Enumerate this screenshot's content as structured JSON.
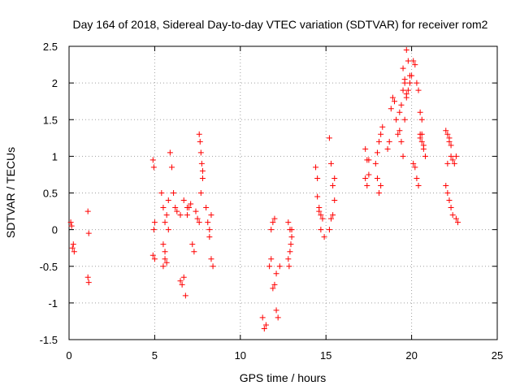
{
  "chart_data": {
    "type": "scatter",
    "title": "Day 164 of 2018, Sidereal Day-to-day VTEC variation (SDTVAR) for receiver rom2",
    "xlabel": "GPS time / hours",
    "ylabel": "SDTVAR / TECUs",
    "xlim": [
      0,
      25
    ],
    "ylim": [
      -1.5,
      2.5
    ],
    "x_ticks": [
      0,
      5,
      10,
      15,
      20,
      25
    ],
    "x_tick_labels": [
      "0",
      "5",
      "10",
      "15",
      "20",
      "25"
    ],
    "y_ticks": [
      -1.5,
      -1,
      -0.5,
      0,
      0.5,
      1,
      1.5,
      2,
      2.5
    ],
    "y_tick_labels": [
      "-1.5",
      "-1",
      "-0.5",
      "0",
      "0.5",
      "1",
      "1.5",
      "2",
      "2.5"
    ],
    "grid": true,
    "marker": "plus",
    "color": "#ff0000",
    "series": [
      {
        "name": "SDTVAR",
        "x": [
          0.1,
          0.2,
          0.3,
          0.15,
          0.25,
          1.1,
          1.15,
          1.1,
          1.15,
          4.9,
          4.95,
          5.0,
          4.9,
          5.0,
          4.95,
          5.4,
          5.5,
          5.6,
          5.7,
          5.8,
          5.5,
          5.6,
          5.7,
          5.9,
          6.0,
          5.8,
          5.5,
          5.6,
          6.1,
          6.2,
          6.3,
          6.5,
          6.6,
          6.7,
          6.8,
          6.9,
          7.0,
          7.1,
          7.2,
          7.3,
          7.4,
          7.5,
          7.6,
          7.7,
          7.8,
          7.6,
          7.65,
          7.7,
          7.75,
          7.8,
          8.0,
          8.1,
          8.2,
          8.3,
          8.4,
          8.2,
          8.3,
          6.5,
          6.7,
          6.9,
          11.3,
          11.4,
          11.5,
          11.7,
          11.8,
          11.9,
          12.0,
          12.1,
          12.2,
          11.8,
          11.9,
          12.0,
          12.1,
          12.3,
          12.8,
          12.9,
          13.0,
          12.8,
          12.9,
          13.0,
          12.85,
          12.95,
          14.4,
          14.5,
          14.6,
          14.7,
          14.8,
          14.5,
          14.6,
          14.7,
          14.9,
          15.2,
          15.3,
          15.4,
          15.5,
          15.3,
          15.4,
          15.2,
          15.5,
          17.3,
          17.4,
          17.5,
          17.3,
          17.4,
          17.5,
          17.9,
          18.0,
          18.1,
          18.2,
          18.3,
          18.1,
          18.2,
          18.0,
          18.6,
          18.7,
          18.8,
          18.9,
          19.0,
          19.1,
          19.2,
          19.3,
          19.4,
          19.5,
          19.6,
          19.7,
          19.8,
          19.9,
          19.3,
          19.4,
          19.5,
          19.6,
          19.7,
          19.8,
          19.9,
          19.5,
          19.6,
          19.7,
          20.0,
          20.1,
          20.2,
          20.3,
          20.4,
          20.5,
          20.6,
          20.7,
          20.8,
          20.1,
          20.2,
          20.3,
          20.4,
          20.5,
          20.6,
          20.7,
          20.5,
          20.6,
          22.0,
          22.1,
          22.2,
          22.3,
          22.4,
          22.5,
          22.6,
          22.1,
          22.2,
          22.3,
          22.4,
          22.0,
          22.1,
          22.2,
          22.3,
          22.6,
          22.7
        ],
        "y": [
          0.1,
          -0.25,
          -0.3,
          0.05,
          -0.2,
          0.25,
          -0.05,
          -0.65,
          -0.72,
          0.95,
          0.85,
          0.1,
          -0.35,
          -0.4,
          0.0,
          0.5,
          0.3,
          -0.4,
          -0.45,
          0.4,
          -0.2,
          0.1,
          0.2,
          1.05,
          0.85,
          0.0,
          -0.5,
          -0.3,
          0.5,
          0.3,
          0.25,
          -0.7,
          -0.75,
          -0.65,
          -0.9,
          0.2,
          0.3,
          0.35,
          -0.2,
          -0.3,
          0.25,
          0.15,
          0.1,
          0.5,
          0.8,
          1.3,
          1.2,
          1.05,
          0.9,
          0.7,
          0.3,
          0.1,
          0.0,
          -0.4,
          -0.5,
          -0.1,
          0.2,
          0.2,
          0.4,
          0.3,
          -1.2,
          -1.35,
          -1.3,
          -0.5,
          -0.4,
          -0.8,
          -0.75,
          -1.1,
          -1.2,
          0.0,
          0.1,
          0.15,
          -0.6,
          -0.5,
          -0.4,
          -0.3,
          0.0,
          0.1,
          0.0,
          -0.1,
          -0.5,
          -0.2,
          0.85,
          0.7,
          0.25,
          0.2,
          0.15,
          0.45,
          0.3,
          0.0,
          -0.1,
          1.25,
          0.9,
          0.6,
          0.4,
          0.15,
          0.2,
          0.0,
          0.7,
          1.1,
          0.95,
          0.75,
          0.7,
          0.6,
          0.95,
          0.9,
          1.05,
          1.2,
          1.3,
          1.4,
          0.5,
          0.6,
          0.7,
          1.1,
          1.2,
          1.65,
          1.8,
          1.75,
          1.5,
          1.3,
          1.6,
          1.7,
          1.9,
          2.0,
          2.45,
          2.3,
          2.1,
          1.35,
          1.2,
          1.0,
          1.5,
          1.8,
          1.9,
          2.0,
          2.2,
          2.05,
          1.85,
          2.1,
          2.3,
          2.25,
          2.0,
          1.9,
          1.3,
          1.2,
          1.1,
          1.0,
          0.9,
          0.85,
          0.7,
          0.6,
          1.6,
          1.5,
          1.15,
          1.25,
          1.3,
          1.35,
          1.3,
          1.2,
          1.0,
          0.95,
          0.9,
          1.0,
          0.5,
          0.4,
          0.3,
          0.2,
          0.6,
          0.9,
          1.25,
          1.15,
          0.15,
          0.1
        ]
      }
    ]
  }
}
